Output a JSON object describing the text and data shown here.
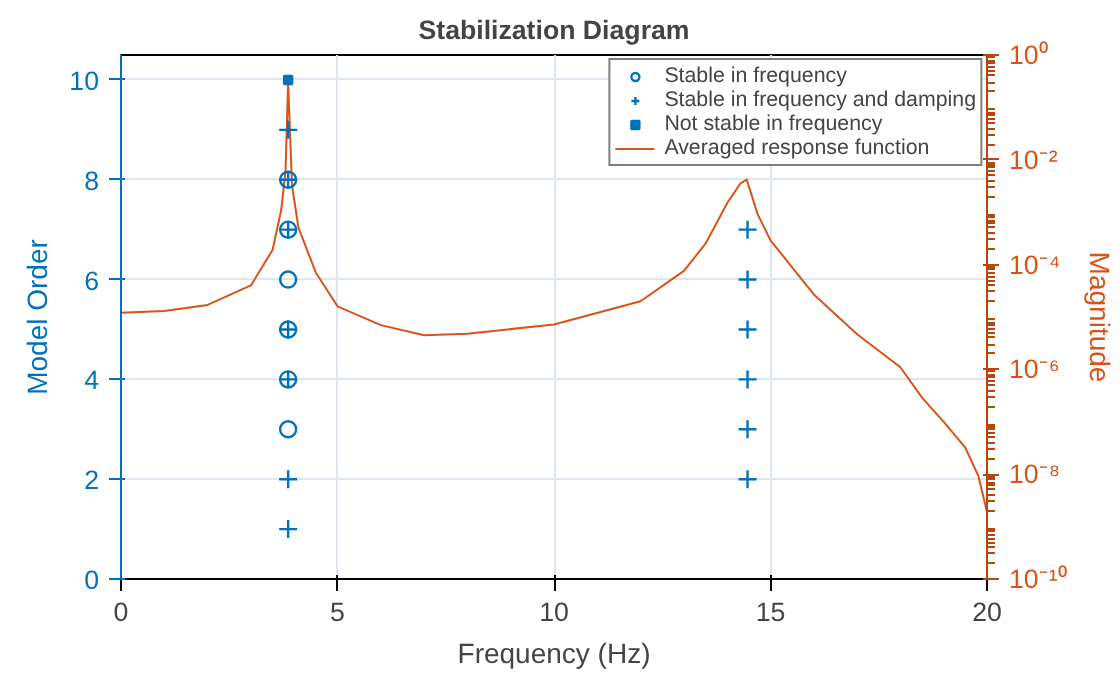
{
  "chart_data": {
    "type": "scatter",
    "title": "Stabilization Diagram",
    "xlabel": "Frequency (Hz)",
    "ylabel": "Model Order",
    "y2label": "Magnitude",
    "xlim": [
      0,
      20
    ],
    "xticks": [
      0,
      5,
      10,
      15,
      20
    ],
    "ylim": [
      0,
      10.5
    ],
    "yticks": [
      0,
      2,
      4,
      6,
      8,
      10
    ],
    "y2lim": [
      1e-10,
      1
    ],
    "y2ticks": [
      {
        "value": 1e-10,
        "label": "10⁻¹⁰"
      },
      {
        "value": 1e-08,
        "label": "10⁻⁸"
      },
      {
        "value": 1e-06,
        "label": "10⁻⁶"
      },
      {
        "value": 0.0001,
        "label": "10⁻⁴"
      },
      {
        "value": 0.01,
        "label": "10⁻²"
      },
      {
        "value": 1,
        "label": "10⁰"
      }
    ],
    "log": "y2",
    "grid": true,
    "legend": "top right",
    "series": [
      {
        "name": "Stable in frequency",
        "color": "#0072bd",
        "marker": "circle",
        "x": [
          3.86,
          3.86,
          3.86,
          3.86,
          3.86,
          3.86
        ],
        "values": [
          3,
          4,
          5,
          6,
          7,
          8
        ]
      },
      {
        "name": "Stable in frequency and damping",
        "color": "#0072bd",
        "marker": "cross",
        "x": [
          3.86,
          3.86,
          3.86,
          3.86,
          3.86,
          3.86,
          3.86,
          14.47,
          14.47,
          14.47,
          14.47,
          14.47,
          14.47
        ],
        "values": [
          1,
          2,
          4,
          5,
          7,
          8,
          9,
          2,
          3,
          4,
          5,
          6,
          7
        ]
      },
      {
        "name": "Not stable in frequency",
        "color": "#0072bd",
        "marker": "square",
        "x": [
          3.86
        ],
        "values": [
          10
        ]
      },
      {
        "name": "Averaged response function",
        "color": "#d95319",
        "type": "line",
        "axis": "y2",
        "x": [
          0,
          1,
          2,
          3,
          3.5,
          3.7,
          3.8,
          3.86,
          3.95,
          4.1,
          4.5,
          5,
          6,
          7,
          8,
          10,
          12,
          13,
          13.5,
          14,
          14.3,
          14.45,
          14.7,
          15,
          16,
          17,
          18,
          18.5,
          19,
          19.5,
          19.8,
          20
        ],
        "values": [
          1.2e-05,
          1.3e-05,
          1.7e-05,
          4e-05,
          0.00019,
          0.0011,
          0.0063,
          0.3,
          0.0032,
          0.0005,
          7e-05,
          1.6e-05,
          7e-06,
          4.5e-06,
          4.8e-06,
          7.2e-06,
          2e-05,
          7.6e-05,
          0.00025,
          0.0015,
          0.0035,
          0.0042,
          0.00093,
          0.00029,
          2.7e-05,
          4.7e-06,
          1.1e-06,
          2.9e-07,
          1e-07,
          3.2e-08,
          9.3e-09,
          1.9e-09
        ]
      }
    ]
  }
}
